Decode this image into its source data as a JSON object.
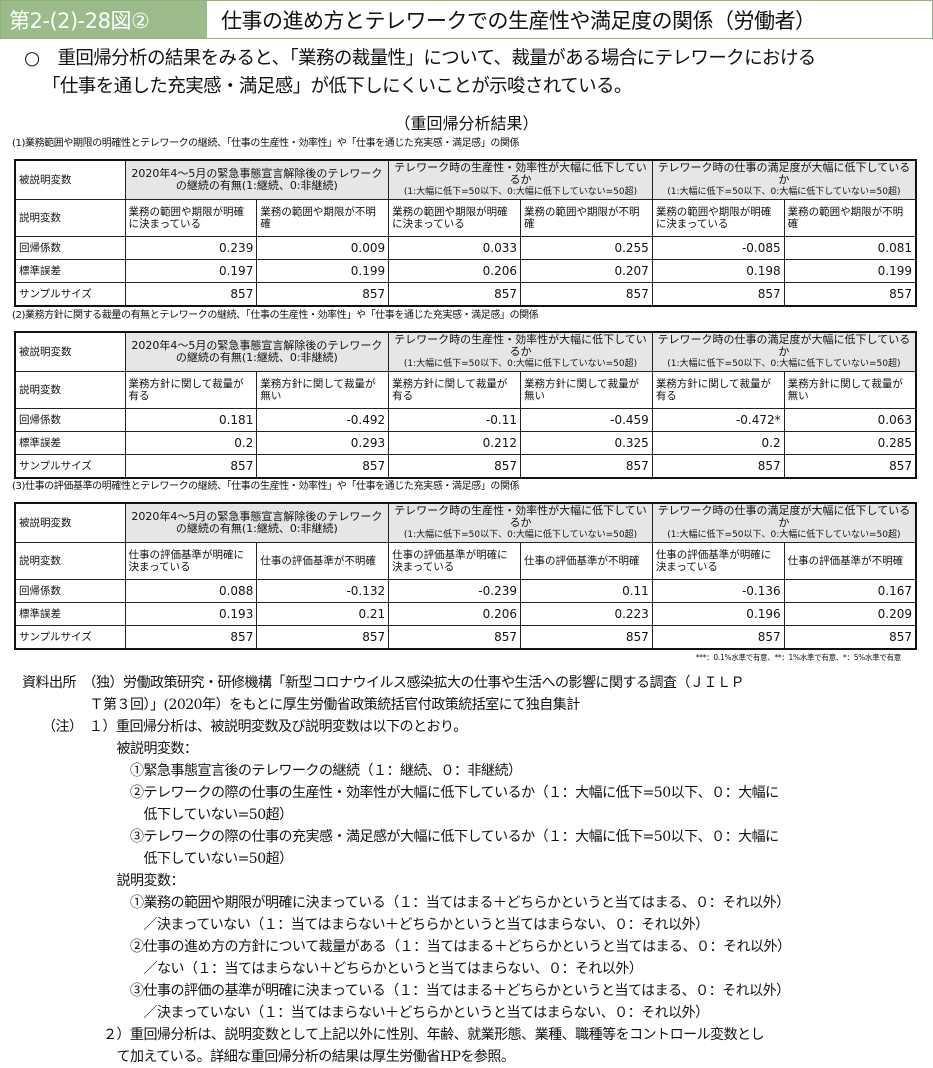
{
  "header": {
    "figure_number": "第2-(2)-28図②",
    "title": "仕事の進め方とテレワークでの生産性や満足度の関係（労働者）"
  },
  "summary": {
    "line1": "○　重回帰分析の結果をみると、「業務の裁量性」について、裁量がある場合にテレワークにおける",
    "line2": "「仕事を通した充実感・満足感」が低下しにくいことが示唆されている。"
  },
  "subtitle": "（重回帰分析結果）",
  "row_labels": {
    "dependent": "被説明変数",
    "explanatory": "説明変数",
    "coef": "回帰係数",
    "se": "標準誤差",
    "n": "サンプルサイズ"
  },
  "dependent_vars": [
    {
      "main": "2020年4～5月の緊急事態宣言解除後のテレワークの継続の有無(1:継続、0:非継続)",
      "sub": ""
    },
    {
      "main": "テレワーク時の生産性・効率性が大幅に低下しているか",
      "sub": "(1:大幅に低下=50以下、0:大幅に低下していない=50超)"
    },
    {
      "main": "テレワーク時の仕事の満足度が大幅に低下しているか",
      "sub": "(1:大幅に低下=50以下、0:大幅に低下していない=50超)"
    }
  ],
  "tables": [
    {
      "caption": "(1)業務範囲や期限の明確性とテレワークの継続、「仕事の生産性・効率性」や「仕事を通じた充実感・満足感」の関係",
      "explanatory": [
        "業務の範囲や期限が明確に決まっている",
        "業務の範囲や期限が不明確",
        "業務の範囲や期限が明確に決まっている",
        "業務の範囲や期限が不明確",
        "業務の範囲や期限が明確に決まっている",
        "業務の範囲や期限が不明確"
      ],
      "coef": [
        "0.239",
        "0.009",
        "0.033",
        "0.255",
        "-0.085",
        "0.081"
      ],
      "se": [
        "0.197",
        "0.199",
        "0.206",
        "0.207",
        "0.198",
        "0.199"
      ],
      "n": [
        "857",
        "857",
        "857",
        "857",
        "857",
        "857"
      ]
    },
    {
      "caption": "(2)業務方針に関する裁量の有無とテレワークの継続、「仕事の生産性・効率性」や「仕事を通じた充実感・満足感」の関係",
      "explanatory": [
        "業務方針に関して裁量が有る",
        "業務方針に関して裁量が無い",
        "業務方針に関して裁量が有る",
        "業務方針に関して裁量が無い",
        "業務方針に関して裁量が有る",
        "業務方針に関して裁量が無い"
      ],
      "coef": [
        "0.181",
        "-0.492",
        "-0.11",
        "-0.459",
        "-0.472*",
        "0.063"
      ],
      "se": [
        "0.2",
        "0.293",
        "0.212",
        "0.325",
        "0.2",
        "0.285"
      ],
      "n": [
        "857",
        "857",
        "857",
        "857",
        "857",
        "857"
      ]
    },
    {
      "caption": "(3)仕事の評価基準の明確性とテレワークの継続、「仕事の生産性・効率性」や「仕事を通じた充実感・満足感」の関係",
      "explanatory": [
        "仕事の評価基準が明確に決まっている",
        "仕事の評価基準が不明確",
        "仕事の評価基準が明確に決まっている",
        "仕事の評価基準が不明確",
        "仕事の評価基準が明確に決まっている",
        "仕事の評価基準が不明確"
      ],
      "coef": [
        "0.088",
        "-0.132",
        "-0.239",
        "0.11",
        "-0.136",
        "0.167"
      ],
      "se": [
        "0.193",
        "0.21",
        "0.206",
        "0.223",
        "0.196",
        "0.209"
      ],
      "n": [
        "857",
        "857",
        "857",
        "857",
        "857",
        "857"
      ]
    }
  ],
  "significance_note": "***：0.1%水準で有意、**：1%水準で有意、*：5%水準で有意",
  "notes": [
    "資料出所　（独）労働政策研究・研修機構「新型コロナウイルス感染拡大の仕事や生活への影響に関する調査（ＪＩＬＰ",
    "　　　　　Ｔ第３回）」(2020年）をもとに厚生労働省政策統括官付政策統括室にて独自集計",
    "　　（注）　１）重回帰分析は、被説明変数及び説明変数は以下のとおり。",
    "　　　　　　　被説明変数：",
    "　　　　　　　　①緊急事態宣言後のテレワークの継続（１：継続、０：非継続）",
    "　　　　　　　　②テレワークの際の仕事の生産性・効率性が大幅に低下しているか（１：大幅に低下=50以下、０：大幅に",
    "　　　　　　　　　低下していない=50超）",
    "　　　　　　　　③テレワークの際の仕事の充実感・満足感が大幅に低下しているか（１：大幅に低下=50以下、０：大幅に",
    "　　　　　　　　　低下していない=50超）",
    "　　　　　　　説明変数：",
    "　　　　　　　　①業務の範囲や期限が明確に決まっている（１：当てはまる＋どちらかというと当てはまる、０：それ以外）",
    "　　　　　　　　　／決まっていない（１：当てはまらない＋どちらかというと当てはまらない、０：それ以外）",
    "　　　　　　　　②仕事の進め方の方針について裁量がある（１：当てはまる＋どちらかというと当てはまる、０：それ以外）",
    "　　　　　　　　　／ない（１：当てはまらない＋どちらかというと当てはまらない、０：それ以外）",
    "　　　　　　　　③仕事の評価の基準が明確に決まっている（１：当てはまる＋どちらかというと当てはまる、０：それ以外）",
    "　　　　　　　　　／決まっていない（１：当てはまらない＋どちらかというと当てはまらない、０：それ以外）",
    "　　　　　　２）重回帰分析は、説明変数として上記以外に性別、年齢、就業形態、業種、職種等をコントロール変数とし",
    "　　　　　　　て加えている。詳細な重回帰分析の結果は厚生労働省HPを参照。"
  ]
}
